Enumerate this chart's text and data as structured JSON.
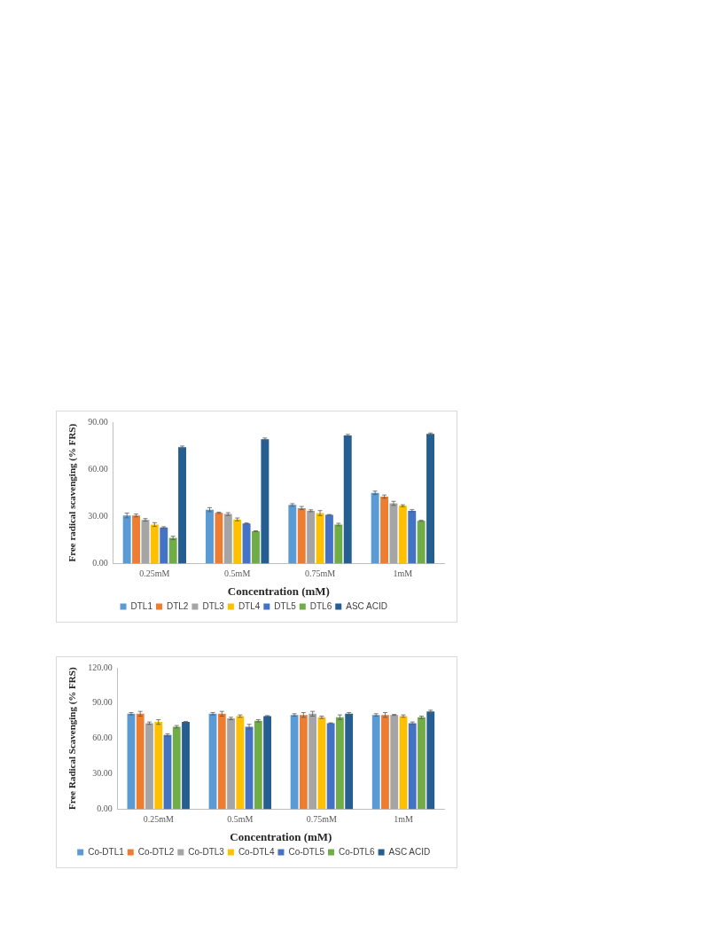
{
  "chart_data": [
    {
      "type": "bar",
      "xlabel": "Concentration (mM)",
      "ylabel": "Free radical scavenging (% FRS)",
      "categories": [
        "0.25mM",
        "0.5mM",
        "0.75mM",
        "1mM"
      ],
      "ylim": [
        0,
        90
      ],
      "yticks": [
        {
          "value": 0,
          "label": "0.00"
        },
        {
          "value": 30,
          "label": "30.00"
        },
        {
          "value": 60,
          "label": "60.00"
        },
        {
          "value": 90,
          "label": "90.00"
        }
      ],
      "grid": false,
      "legend": "bottom",
      "series": [
        {
          "name": "DTL1",
          "color": "#5b9bd5",
          "values": [
            30.6,
            34.3,
            37.3,
            45
          ],
          "errors": [
            1.5,
            1.3,
            0.8,
            1.1
          ]
        },
        {
          "name": "DTL2",
          "color": "#ed7d31",
          "values": [
            30.6,
            32.3,
            35.3,
            42.6
          ],
          "errors": [
            0.9,
            0.4,
            1,
            1
          ]
        },
        {
          "name": "DTL3",
          "color": "#a5a5a5",
          "values": [
            27.8,
            31.5,
            33.6,
            38.3
          ],
          "errors": [
            0.8,
            0.9,
            0.6,
            1.3
          ]
        },
        {
          "name": "DTL4",
          "color": "#ffc000",
          "values": [
            24.8,
            28.1,
            32.1,
            36.8
          ],
          "errors": [
            1.2,
            0.9,
            1.6,
            0.6
          ]
        },
        {
          "name": "DTL5",
          "color": "#4472c4",
          "values": [
            22.9,
            25.5,
            31,
            33.6
          ],
          "errors": [
            0.5,
            0.3,
            0.2,
            0.7
          ]
        },
        {
          "name": "DTL6",
          "color": "#70ad47",
          "values": [
            16.3,
            20.6,
            24.8,
            27.2
          ],
          "errors": [
            1.1,
            0.2,
            0.8,
            0.3
          ]
        },
        {
          "name": "ASC ACID",
          "color": "#255e91",
          "values": [
            74,
            79.2,
            81.6,
            82.5
          ],
          "errors": [
            0.8,
            0.7,
            0.6,
            0.6
          ]
        }
      ]
    },
    {
      "type": "bar",
      "xlabel": "Concentration (mM)",
      "ylabel": "Free Radical Scavenging (% FRS)",
      "categories": [
        "0.25mM",
        "0.5mM",
        "0.75mM",
        "1mM"
      ],
      "ylim": [
        0,
        120
      ],
      "yticks": [
        {
          "value": 0,
          "label": "0.00"
        },
        {
          "value": 30,
          "label": "30.00"
        },
        {
          "value": 60,
          "label": "60.00"
        },
        {
          "value": 90,
          "label": "90.00"
        },
        {
          "value": 120,
          "label": "120.00"
        }
      ],
      "grid": false,
      "legend": "bottom",
      "series": [
        {
          "name": "Co-DTL1",
          "color": "#5b9bd5",
          "values": [
            81,
            81,
            80,
            80
          ],
          "errors": [
            1,
            1,
            1,
            1
          ]
        },
        {
          "name": "Co-DTL2",
          "color": "#ed7d31",
          "values": [
            81,
            81,
            80,
            80
          ],
          "errors": [
            2,
            2,
            2,
            2
          ]
        },
        {
          "name": "Co-DTL3",
          "color": "#a5a5a5",
          "values": [
            73,
            77,
            81,
            80
          ],
          "errors": [
            1,
            1,
            2,
            0.4
          ]
        },
        {
          "name": "Co-DTL4",
          "color": "#ffc000",
          "values": [
            74,
            79,
            78,
            79
          ],
          "errors": [
            2,
            1,
            1,
            1
          ]
        },
        {
          "name": "Co-DTL5",
          "color": "#4472c4",
          "values": [
            63,
            70,
            73,
            73
          ],
          "errors": [
            1,
            2,
            0.3,
            1
          ]
        },
        {
          "name": "Co-DTL6",
          "color": "#70ad47",
          "values": [
            70,
            75,
            78,
            78
          ],
          "errors": [
            1,
            1,
            2,
            1
          ]
        },
        {
          "name": "ASC ACID",
          "color": "#255e91",
          "values": [
            74,
            79,
            81,
            83
          ],
          "errors": [
            0.5,
            0.4,
            1,
            1
          ]
        }
      ]
    }
  ]
}
